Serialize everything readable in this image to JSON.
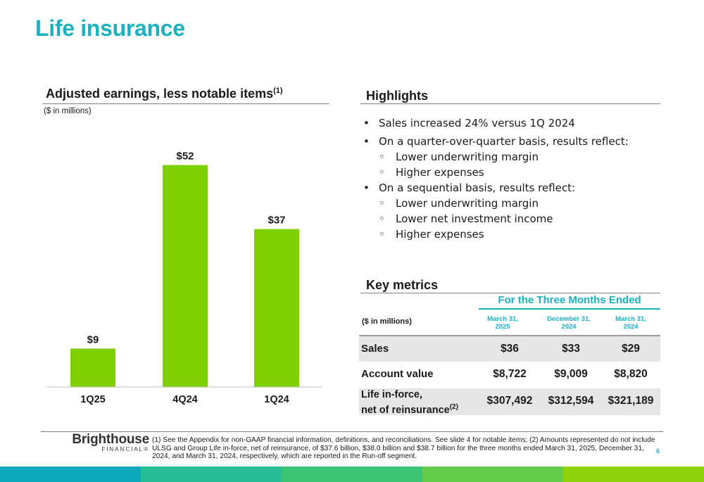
{
  "page": {
    "title": "Life insurance",
    "page_number": "6"
  },
  "colors": {
    "accent": "#1ab1c0",
    "bar": "#7ed000",
    "shade": "#e6e6e6"
  },
  "chart": {
    "heading": "Adjusted earnings, less notable items",
    "heading_footnote": "(1)",
    "unit_note": "($ in millions)"
  },
  "chart_data": {
    "type": "bar",
    "title": "Adjusted earnings, less notable items",
    "ylabel": "($ in millions)",
    "categories": [
      "1Q25",
      "4Q24",
      "1Q24"
    ],
    "values": [
      9,
      52,
      37
    ],
    "data_labels": [
      "$9",
      "$52",
      "$37"
    ],
    "ylim": [
      0,
      60
    ],
    "grid": false,
    "legend": "none"
  },
  "highlights": {
    "heading": "Highlights",
    "items": [
      {
        "text": "Sales increased 24% versus 1Q 2024",
        "subs": []
      },
      {
        "text": "On a quarter-over-quarter basis, results reflect:",
        "subs": [
          "Lower underwriting margin",
          "Higher expenses"
        ]
      },
      {
        "text": "On a sequential basis, results reflect:",
        "subs": [
          "Lower underwriting margin",
          "Lower net investment income",
          "Higher expenses"
        ]
      }
    ]
  },
  "key_metrics": {
    "heading": "Key metrics",
    "period_header": "For the Three Months Ended",
    "unit_note": "($ in millions)",
    "columns": [
      {
        "line1": "March 31,",
        "line2": "2025"
      },
      {
        "line1": "December 31,",
        "line2": "2024"
      },
      {
        "line1": "March 31,",
        "line2": "2024"
      }
    ],
    "rows": [
      {
        "label": "Sales",
        "values": [
          "$36",
          "$33",
          "$29"
        ]
      },
      {
        "label": "Account value",
        "values": [
          "$8,722",
          "$9,009",
          "$8,820"
        ]
      },
      {
        "label_line1": "Life in-force,",
        "label_line2": "net of reinsurance",
        "footnote": "(2)",
        "values": [
          "$307,492",
          "$312,594",
          "$321,189"
        ]
      }
    ]
  },
  "footer": {
    "logo_main": "Brighthouse",
    "logo_sub": "FINANCIAL®",
    "footnote": "(1) See the Appendix for non-GAAP financial information, definitions, and reconciliations. See slide 4 for notable items; (2) Amounts represented do not include ULSG and Group Life in-force, net of reinsurance, of $37.6 billion, $38.0 billion and $38.7 billion for the three months ended March 31, 2025, December 31, 2024, and March 31, 2024, respectively, which are reported in the Run-off segment.",
    "stripe_colors": [
      "#0fa9bd",
      "#26bc95",
      "#3cc472",
      "#62cb4c",
      "#8fd30f"
    ]
  }
}
